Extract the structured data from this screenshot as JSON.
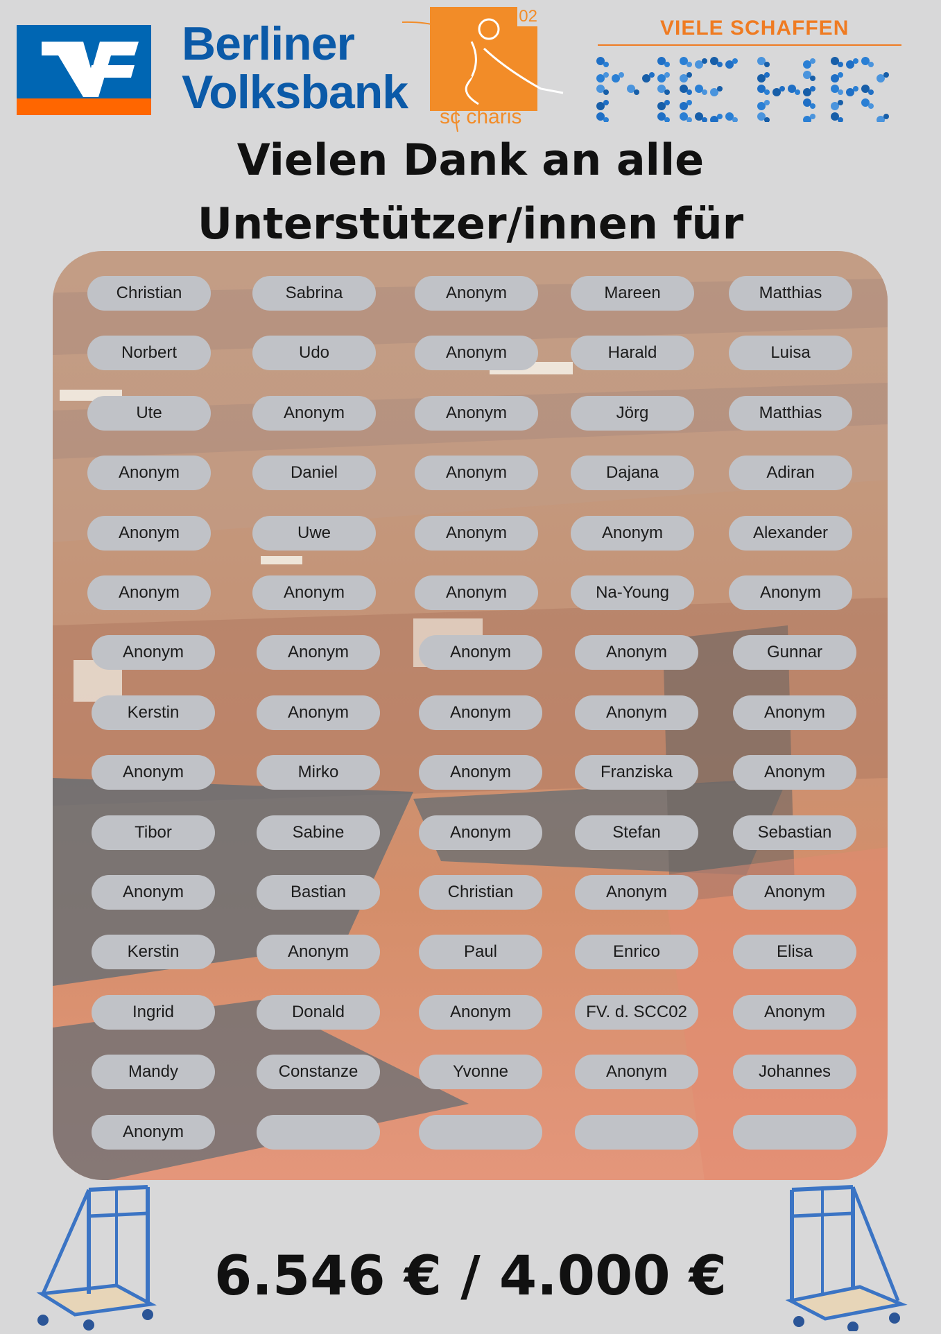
{
  "header": {
    "bank_name_line1": "Berliner",
    "bank_name_line2": "Volksbank",
    "club_number": "02",
    "club_name": "sc charis",
    "campaign_tagline": "VIELE SCHAFFEN",
    "campaign_word": "MEHR"
  },
  "title": {
    "line1": "Vielen Dank an alle",
    "line2": "Unterstützer/innen für"
  },
  "supporters": [
    [
      "Christian",
      "Sabrina",
      "Anonym",
      "Mareen",
      "Matthias"
    ],
    [
      "Norbert",
      "Udo",
      "Anonym",
      "Harald",
      "Luisa"
    ],
    [
      "Ute",
      "Anonym",
      "Anonym",
      "Jörg",
      "Matthias"
    ],
    [
      "Anonym",
      "Daniel",
      "Anonym",
      "Dajana",
      "Adiran"
    ],
    [
      "Anonym",
      "Uwe",
      "Anonym",
      "Anonym",
      "Alexander"
    ],
    [
      "Anonym",
      "Anonym",
      "Anonym",
      "Na-Young",
      "Anonym"
    ],
    [
      "Anonym",
      "Anonym",
      "Anonym",
      "Anonym",
      "Gunnar"
    ],
    [
      "Kerstin",
      "Anonym",
      "Anonym",
      "Anonym",
      "Anonym"
    ],
    [
      "Anonym",
      "Mirko",
      "Anonym",
      "Franziska",
      "Anonym"
    ],
    [
      "Tibor",
      "Sabine",
      "Anonym",
      "Stefan",
      "Sebastian"
    ],
    [
      "Anonym",
      "Bastian",
      "Christian",
      "Anonym",
      "Anonym"
    ],
    [
      "Kerstin",
      "Anonym",
      "Paul",
      "Enrico",
      "Elisa"
    ],
    [
      "Ingrid",
      "Donald",
      "Anonym",
      "FV. d. SCC02",
      "Anonym"
    ],
    [
      "Mandy",
      "Constanze",
      "Yvonne",
      "Anonym",
      "Johannes"
    ],
    [
      "Anonym",
      "",
      "",
      "",
      ""
    ]
  ],
  "total": "6.546 € / 4.000 €",
  "colors": {
    "background": "#d8d8d9",
    "bank_blue": "#0066b3",
    "bank_orange": "#ff6600",
    "club_orange": "#f28c28",
    "campaign_blue": "#1f6fc5",
    "pill": "#c0c2c7"
  }
}
